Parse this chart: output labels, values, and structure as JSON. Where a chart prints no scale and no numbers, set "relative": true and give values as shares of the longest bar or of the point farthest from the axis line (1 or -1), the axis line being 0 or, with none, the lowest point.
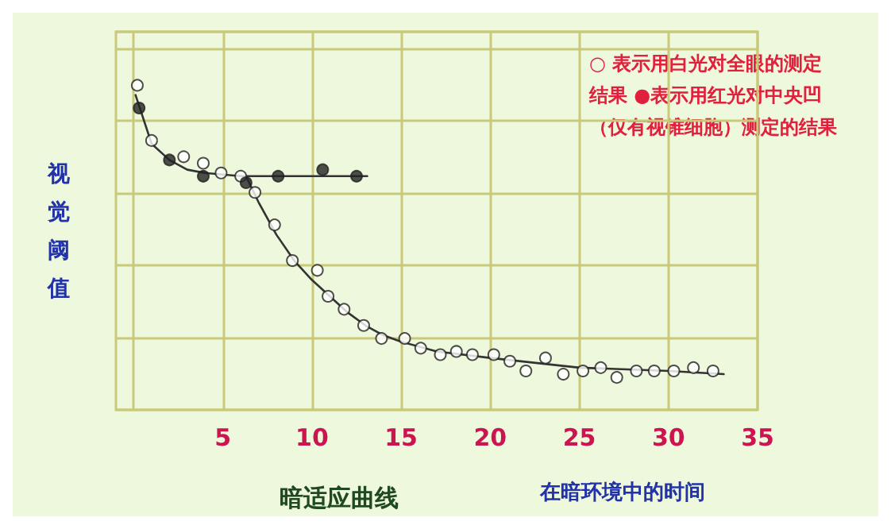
{
  "chart_data": {
    "type": "scatter",
    "title": "暗适应曲线",
    "xlabel": "在暗环境中的时间",
    "ylabel": "视觉阈值",
    "relative": true,
    "grid": true,
    "tick_labels": "x",
    "xlim": [
      -1,
      35
    ],
    "xticks": [
      {
        "value": 0,
        "label": null
      },
      5,
      10,
      15,
      20,
      25,
      30,
      35
    ],
    "annotations": [
      "○ 表示用白光对全眼的测定结果 ●表示用红光对中央凹（仅有视锥细胞）测定的结果"
    ],
    "series": [
      {
        "marker": "circle",
        "color": "#ffffff",
        "x": [
          0.2,
          1.0,
          2.8,
          3.9,
          4.9,
          6.0,
          6.8,
          7.9,
          8.9,
          10.3,
          10.9,
          11.8,
          12.9,
          13.9,
          15.2,
          16.1,
          17.2,
          18.1,
          19.0,
          20.2,
          21.1,
          22.0,
          23.1,
          24.1,
          25.2,
          26.2,
          27.1,
          28.2,
          29.2,
          30.3,
          31.4,
          32.5
        ],
        "values": [
          1.0,
          0.83,
          0.78,
          0.76,
          0.73,
          0.72,
          0.67,
          0.57,
          0.46,
          0.43,
          0.35,
          0.31,
          0.26,
          0.22,
          0.22,
          0.19,
          0.17,
          0.18,
          0.17,
          0.17,
          0.15,
          0.12,
          0.16,
          0.11,
          0.12,
          0.13,
          0.1,
          0.12,
          0.12,
          0.12,
          0.13,
          0.12
        ]
      },
      {
        "marker": "circle",
        "color": "#222222",
        "x": [
          0.3,
          2.0,
          3.9,
          6.3,
          8.1,
          10.6,
          12.5
        ],
        "values": [
          0.93,
          0.77,
          0.72,
          0.7,
          0.72,
          0.74,
          0.72
        ]
      },
      {
        "type": "line",
        "marker": "none",
        "color": "#333333",
        "x": [
          0.1,
          1,
          2,
          3,
          4,
          6,
          13.1
        ],
        "values": [
          0.97,
          0.82,
          0.77,
          0.74,
          0.73,
          0.72,
          0.72
        ]
      },
      {
        "type": "line",
        "marker": "none",
        "color": "#333333",
        "x": [
          6.3,
          7,
          8,
          9,
          10,
          11,
          12,
          13,
          14,
          15,
          17,
          20,
          25,
          30,
          33.1
        ],
        "values": [
          0.72,
          0.64,
          0.54,
          0.46,
          0.4,
          0.35,
          0.3,
          0.26,
          0.23,
          0.21,
          0.18,
          0.16,
          0.13,
          0.12,
          0.11
        ]
      }
    ]
  }
}
